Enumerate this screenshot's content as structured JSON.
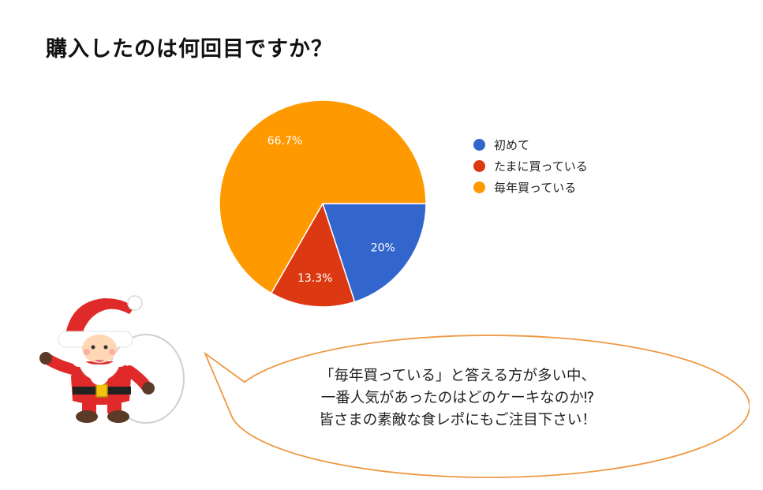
{
  "page": {
    "title": "購入したのは何回目ですか？"
  },
  "chart_data": {
    "type": "pie",
    "title": "購入したのは何回目ですか？",
    "slices": [
      {
        "label": "初めて",
        "value": 20,
        "display": "20%",
        "color": "#3366CC"
      },
      {
        "label": "たまに買っている",
        "value": 13.3,
        "display": "13.3%",
        "color": "#DC3912"
      },
      {
        "label": "毎年買っている",
        "value": 66.7,
        "display": "66.7%",
        "color": "#FF9900"
      }
    ],
    "legend_position": "right",
    "label_color": "#ffffff"
  },
  "speech_bubble": {
    "lines": [
      "「毎年買っている」と答える方が多い中、",
      "一番人気があったのはどのケーキなのか⁉",
      "皆さまの素敵な食レポにもご注目下さい！"
    ],
    "border_color": "#EE9944"
  },
  "illustration": {
    "icon": "santa-claus-icon"
  }
}
